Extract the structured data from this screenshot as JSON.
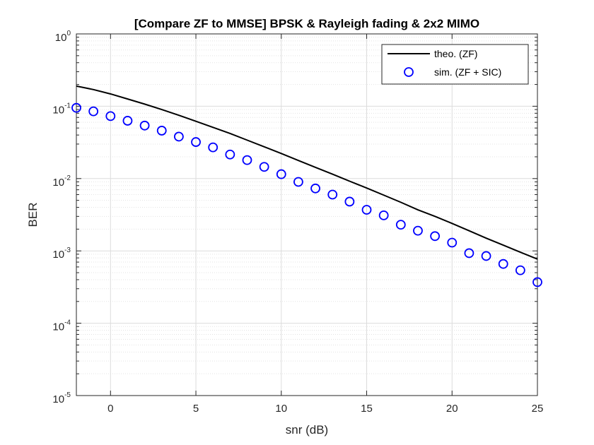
{
  "chart_data": {
    "type": "line",
    "title": "[Compare ZF to MMSE] BPSK & Rayleigh fading & 2x2 MIMO",
    "xlabel": "snr (dB)",
    "ylabel": "BER",
    "xlim": [
      -2,
      25
    ],
    "ylim": [
      1e-05,
      1
    ],
    "yscale": "log",
    "grid": true,
    "legend_position": "top-right",
    "x_ticks": [
      {
        "value": 0,
        "label": "0"
      },
      {
        "value": 5,
        "label": "5"
      },
      {
        "value": 10,
        "label": "10"
      },
      {
        "value": 15,
        "label": "15"
      },
      {
        "value": 20,
        "label": "20"
      },
      {
        "value": 25,
        "label": "25"
      }
    ],
    "y_ticks": [
      {
        "value": 1,
        "base": "10",
        "exp": "0"
      },
      {
        "value": 0.1,
        "base": "10",
        "exp": "-1"
      },
      {
        "value": 0.01,
        "base": "10",
        "exp": "-2"
      },
      {
        "value": 0.001,
        "base": "10",
        "exp": "-3"
      },
      {
        "value": 0.0001,
        "base": "10",
        "exp": "-4"
      },
      {
        "value": 1e-05,
        "base": "10",
        "exp": "-5"
      }
    ],
    "series": [
      {
        "name": "theo. (ZF)",
        "style": "line",
        "color": "#000000",
        "x": [
          -2,
          -1,
          0,
          1,
          2,
          3,
          4,
          5,
          6,
          7,
          8,
          9,
          10,
          11,
          12,
          13,
          14,
          15,
          16,
          17,
          18,
          19,
          20,
          21,
          22,
          23,
          24,
          25
        ],
        "y": [
          0.19,
          0.17,
          0.148,
          0.126,
          0.107,
          0.09,
          0.075,
          0.062,
          0.051,
          0.042,
          0.034,
          0.0275,
          0.0222,
          0.0178,
          0.0143,
          0.0115,
          0.0092,
          0.0074,
          0.0059,
          0.0047,
          0.0037,
          0.003,
          0.0024,
          0.0019,
          0.0015,
          0.0012,
          0.00096,
          0.00077
        ]
      },
      {
        "name": "sim. (ZF + SIC)",
        "style": "marker",
        "marker": "circle",
        "color": "#0000ff",
        "x": [
          -2,
          -1,
          0,
          1,
          2,
          3,
          4,
          5,
          6,
          7,
          8,
          9,
          10,
          11,
          12,
          13,
          14,
          15,
          16,
          17,
          18,
          19,
          20,
          21,
          22,
          23,
          24,
          25
        ],
        "y": [
          0.095,
          0.085,
          0.073,
          0.063,
          0.054,
          0.046,
          0.038,
          0.032,
          0.027,
          0.0215,
          0.018,
          0.0145,
          0.0115,
          0.009,
          0.0073,
          0.006,
          0.0048,
          0.0037,
          0.0031,
          0.0023,
          0.0019,
          0.0016,
          0.0013,
          0.00093,
          0.00085,
          0.00066,
          0.00054,
          0.00037
        ]
      }
    ]
  }
}
